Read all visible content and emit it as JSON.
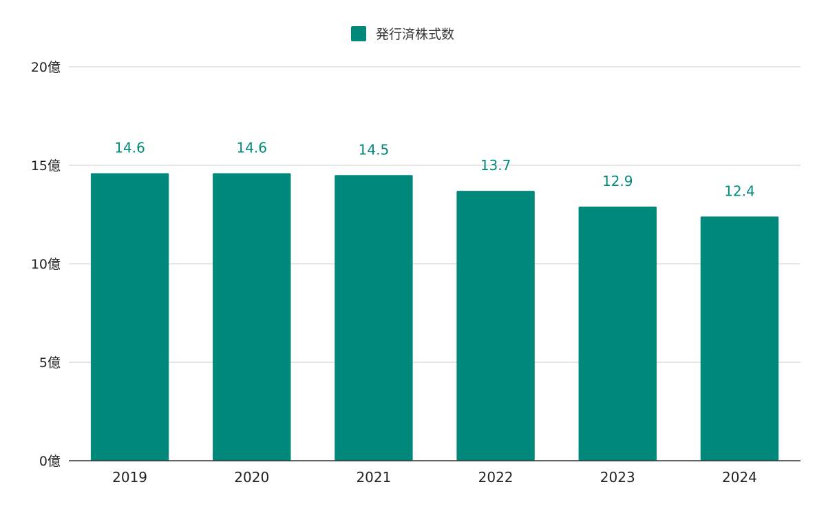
{
  "chart_data": {
    "type": "bar",
    "categories": [
      "2019",
      "2020",
      "2021",
      "2022",
      "2023",
      "2024"
    ],
    "series": [
      {
        "name": "発行済株式数",
        "values": [
          14.6,
          14.6,
          14.5,
          13.7,
          12.9,
          12.4
        ],
        "color": "#00897b"
      }
    ],
    "data_labels": [
      "14.6",
      "14.6",
      "14.5",
      "13.7",
      "12.9",
      "12.4"
    ],
    "ylim": [
      0,
      20
    ],
    "yticks": [
      {
        "value": 0,
        "label": "0億"
      },
      {
        "value": 5,
        "label": "5億"
      },
      {
        "value": 10,
        "label": "10億"
      },
      {
        "value": 15,
        "label": "15億"
      },
      {
        "value": 20,
        "label": "20億"
      }
    ],
    "grid": true,
    "legend_position": "top-center",
    "title": "",
    "xlabel": "",
    "ylabel": ""
  }
}
